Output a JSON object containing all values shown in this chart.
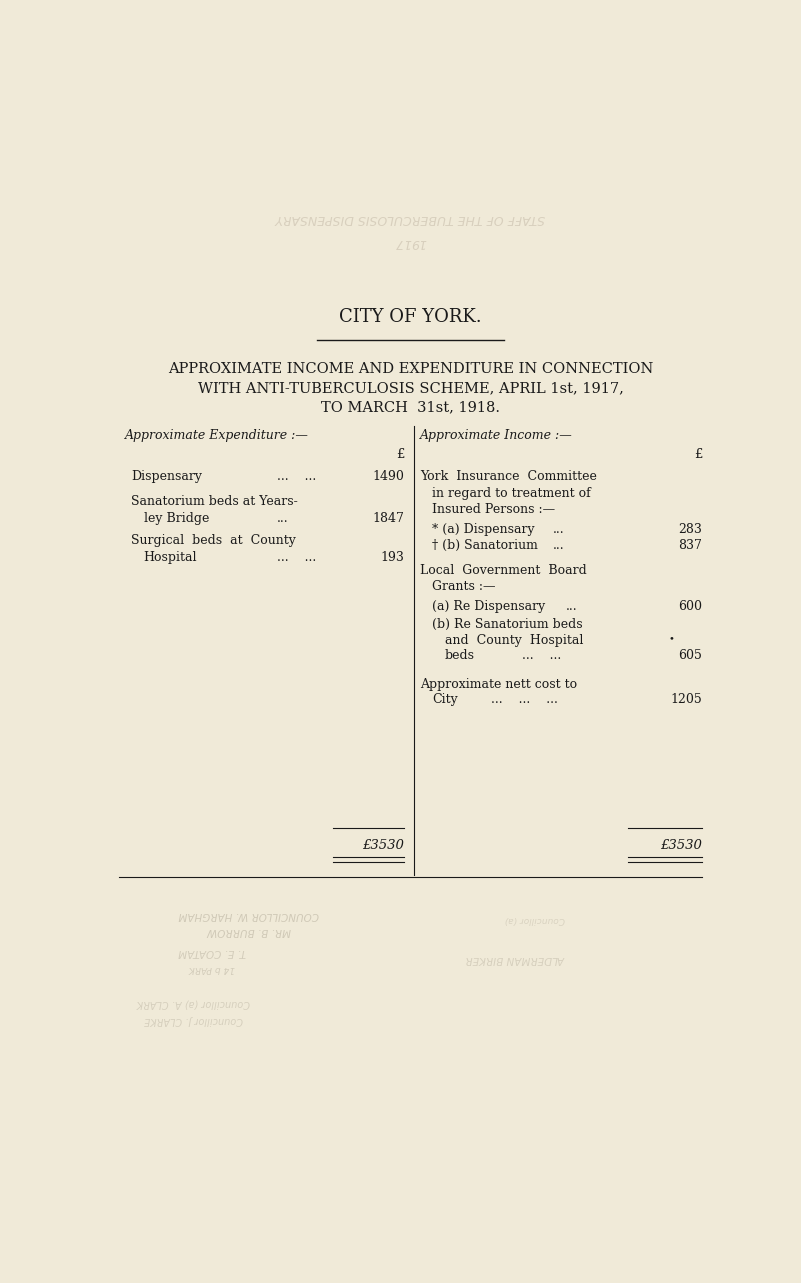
{
  "bg_color": "#f0ead8",
  "watermark_color": "#c5baa8",
  "text_color": "#1a1a1a",
  "city_title": "CITY OF YORK.",
  "main_title_line1": "APPROXIMATE INCOME AND EXPENDITURE IN CONNECTION",
  "main_title_line2": "WITH ANTI-TUBERCULOSIS SCHEME, APRIL 1st, 1917,",
  "main_title_line3": "TO MARCH  31st, 1918.",
  "col_left_header": "Approximate Expenditure :—",
  "col_right_header": "Approximate Income :—",
  "pound_symbol": "£",
  "expenditure_total": "£3530",
  "income_total": "£3530"
}
